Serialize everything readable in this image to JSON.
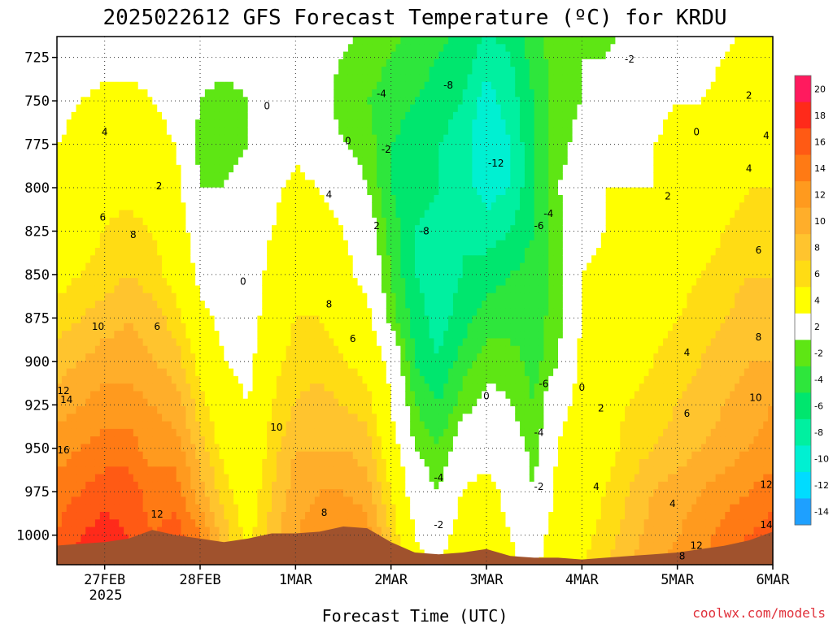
{
  "chart_data": {
    "type": "heatmap",
    "title": "2025022612 GFS Forecast Temperature (ºC) for KRDU",
    "xlabel": "Forecast Time (UTC)",
    "ylabel": "",
    "credit": "coolwx.com/models",
    "x_ticks": [
      "27FEB",
      "28FEB",
      "1MAR",
      "2MAR",
      "3MAR",
      "4MAR",
      "5MAR",
      "6MAR"
    ],
    "x_tick_year": "2025",
    "x_range_days": [
      -0.5,
      7.0
    ],
    "y_ticks": [
      "725",
      "750",
      "775",
      "800",
      "825",
      "850",
      "875",
      "900",
      "925",
      "950",
      "975",
      "1000"
    ],
    "y_range_hpa": [
      713,
      1017
    ],
    "colorbar": {
      "levels": [
        "20",
        "18",
        "16",
        "14",
        "12",
        "10",
        "8",
        "6",
        "4",
        "2",
        "-2",
        "-4",
        "-6",
        "-8",
        "-10",
        "-12",
        "-14"
      ],
      "colors": [
        "#ff1a5e",
        "#ff2a1a",
        "#ff5a14",
        "#ff7a14",
        "#ff9a1e",
        "#ffae2a",
        "#ffc42e",
        "#ffdc14",
        "#ffff00",
        "#ffffff",
        "#5ee614",
        "#2ee63c",
        "#00e66e",
        "#00f0a0",
        "#00f0d2",
        "#00dcff",
        "#1ea0ff"
      ]
    },
    "terrain_color": "#a0522d",
    "profiles": [
      {
        "t": -0.5,
        "v": [
          -1,
          1,
          2,
          3,
          4,
          5,
          7,
          9,
          11,
          13,
          15,
          16
        ]
      },
      {
        "t": -0.25,
        "v": [
          0,
          2,
          3,
          4,
          5,
          6,
          8,
          10,
          12,
          14,
          16,
          18
        ]
      },
      {
        "t": 0.0,
        "v": [
          1,
          3,
          4,
          5,
          6,
          7,
          9,
          11,
          13,
          15,
          17,
          19
        ]
      },
      {
        "t": 0.25,
        "v": [
          1,
          3,
          4,
          5,
          7,
          8,
          10,
          11,
          13,
          15,
          17,
          18
        ]
      },
      {
        "t": 0.5,
        "v": [
          1,
          2,
          3,
          4,
          6,
          7,
          9,
          10,
          12,
          13,
          15,
          16
        ]
      },
      {
        "t": 0.75,
        "v": [
          0,
          1,
          2,
          3,
          4,
          5,
          7,
          9,
          11,
          13,
          15,
          17
        ]
      },
      {
        "t": 1.0,
        "v": [
          -1,
          -2,
          -3,
          -2,
          0,
          1,
          3,
          5,
          7,
          9,
          11,
          14
        ]
      },
      {
        "t": 1.25,
        "v": [
          -1,
          -3,
          -3,
          -2,
          -1,
          0,
          1,
          2,
          4,
          5,
          7,
          9
        ]
      },
      {
        "t": 1.5,
        "v": [
          -1,
          -2,
          -2,
          -1,
          0,
          0,
          0,
          1,
          2,
          3,
          4,
          5
        ]
      },
      {
        "t": 1.75,
        "v": [
          -1,
          -1,
          0,
          1,
          2,
          3,
          4,
          5,
          6,
          7,
          8,
          9
        ]
      },
      {
        "t": 2.0,
        "v": [
          -1,
          0,
          1,
          3,
          4,
          5,
          6,
          7,
          8,
          10,
          11,
          12
        ]
      },
      {
        "t": 2.25,
        "v": [
          -1,
          -1,
          0,
          2,
          3,
          5,
          6,
          7,
          9,
          10,
          12,
          13
        ]
      },
      {
        "t": 2.5,
        "v": [
          -2,
          -3,
          -2,
          1,
          2,
          3,
          5,
          6,
          8,
          10,
          12,
          14
        ]
      },
      {
        "t": 2.75,
        "v": [
          -3,
          -4,
          -3,
          -2,
          0,
          1,
          3,
          5,
          7,
          9,
          11,
          13
        ]
      },
      {
        "t": 3.0,
        "v": [
          -4,
          -5,
          -6,
          -6,
          -5,
          -4,
          -3,
          1,
          2,
          4,
          6,
          8
        ]
      },
      {
        "t": 3.25,
        "v": [
          -5,
          -6,
          -7,
          -7,
          -8,
          -8,
          -7,
          -6,
          -4,
          -2,
          0,
          2
        ]
      },
      {
        "t": 3.5,
        "v": [
          -6,
          -7,
          -8,
          -8,
          -9,
          -9,
          -9,
          -8,
          -6,
          -4,
          -2,
          0
        ]
      },
      {
        "t": 3.75,
        "v": [
          -7,
          -8,
          -9,
          -9,
          -8,
          -8,
          -7,
          -5,
          -3,
          0,
          2,
          4
        ]
      },
      {
        "t": 4.0,
        "v": [
          -9,
          -11,
          -12,
          -11,
          -9,
          -7,
          -5,
          -3,
          -1,
          1,
          3,
          4
        ]
      },
      {
        "t": 4.25,
        "v": [
          -8,
          -9,
          -10,
          -10,
          -8,
          -6,
          -5,
          -3,
          -2,
          0,
          1,
          2
        ]
      },
      {
        "t": 4.5,
        "v": [
          -5,
          -6,
          -6,
          -6,
          -6,
          -5,
          -5,
          -5,
          -4,
          -3,
          -2,
          0
        ]
      },
      {
        "t": 4.75,
        "v": [
          -3,
          -3,
          -3,
          -2,
          -3,
          -3,
          -3,
          -2,
          1,
          2,
          3,
          4
        ]
      },
      {
        "t": 5.0,
        "v": [
          -2,
          -2,
          -1,
          0,
          1,
          2,
          2,
          3,
          3,
          4,
          4,
          5
        ]
      },
      {
        "t": 5.25,
        "v": [
          -2,
          -1,
          0,
          2,
          2,
          3,
          3,
          4,
          5,
          5,
          6,
          7
        ]
      },
      {
        "t": 5.5,
        "v": [
          -1,
          0,
          1,
          2,
          3,
          4,
          4,
          5,
          6,
          7,
          8,
          9
        ]
      },
      {
        "t": 5.75,
        "v": [
          0,
          1,
          2,
          2,
          3,
          4,
          5,
          6,
          7,
          8,
          10,
          11
        ]
      },
      {
        "t": 6.0,
        "v": [
          1,
          2,
          3,
          3,
          4,
          5,
          6,
          7,
          8,
          9,
          11,
          12
        ]
      },
      {
        "t": 6.25,
        "v": [
          1,
          2,
          3,
          4,
          5,
          6,
          7,
          8,
          9,
          10,
          12,
          13
        ]
      },
      {
        "t": 6.5,
        "v": [
          2,
          3,
          4,
          5,
          6,
          7,
          8,
          9,
          10,
          11,
          13,
          15
        ]
      },
      {
        "t": 6.75,
        "v": [
          3,
          4,
          5,
          6,
          7,
          8,
          9,
          10,
          11,
          12,
          14,
          16
        ]
      },
      {
        "t": 7.0,
        "v": [
          3,
          4,
          5,
          6,
          7,
          8,
          9,
          10,
          12,
          13,
          15,
          17
        ]
      }
    ],
    "contour_labels": [
      {
        "text": "0",
        "t": 1.7,
        "p": 753
      },
      {
        "text": "0",
        "t": 2.55,
        "p": 773
      },
      {
        "text": "-4",
        "t": 2.9,
        "p": 746
      },
      {
        "text": "-2",
        "t": 2.95,
        "p": 778
      },
      {
        "text": "-8",
        "t": 3.6,
        "p": 741
      },
      {
        "text": "-12",
        "t": 4.1,
        "p": 786
      },
      {
        "text": "-8",
        "t": 3.35,
        "p": 825
      },
      {
        "text": "-4",
        "t": 4.65,
        "p": 815
      },
      {
        "text": "-6",
        "t": 4.55,
        "p": 822
      },
      {
        "text": "-2",
        "t": 5.5,
        "p": 726
      },
      {
        "text": "0",
        "t": 6.2,
        "p": 768
      },
      {
        "text": "2",
        "t": 5.9,
        "p": 805
      },
      {
        "text": "2",
        "t": 6.75,
        "p": 747
      },
      {
        "text": "4",
        "t": 7.0,
        "p": 770
      },
      {
        "text": "4",
        "t": 6.75,
        "p": 789
      },
      {
        "text": "6",
        "t": 6.85,
        "p": 836
      },
      {
        "text": "8",
        "t": 6.85,
        "p": 886
      },
      {
        "text": "10",
        "t": 6.82,
        "p": 921
      },
      {
        "text": "12",
        "t": 7.0,
        "p": 971
      },
      {
        "text": "14",
        "t": 7.0,
        "p": 994
      },
      {
        "text": "4",
        "t": 0.0,
        "p": 768
      },
      {
        "text": "2",
        "t": 0.57,
        "p": 799
      },
      {
        "text": "6",
        "t": -0.02,
        "p": 817
      },
      {
        "text": "8",
        "t": 0.3,
        "p": 827
      },
      {
        "text": "10",
        "t": -0.07,
        "p": 880
      },
      {
        "text": "6",
        "t": 0.55,
        "p": 880
      },
      {
        "text": "12",
        "t": -0.6,
        "p": 917
      },
      {
        "text": "14",
        "t": -0.4,
        "p": 922
      },
      {
        "text": "16",
        "t": -0.5,
        "p": 951
      },
      {
        "text": "12",
        "t": 0.55,
        "p": 988
      },
      {
        "text": "0",
        "t": 1.45,
        "p": 854
      },
      {
        "text": "4",
        "t": 2.35,
        "p": 804
      },
      {
        "text": "2",
        "t": 2.85,
        "p": 822
      },
      {
        "text": "8",
        "t": 2.35,
        "p": 867
      },
      {
        "text": "6",
        "t": 2.6,
        "p": 887
      },
      {
        "text": "10",
        "t": 1.8,
        "p": 938
      },
      {
        "text": "8",
        "t": 2.3,
        "p": 987
      },
      {
        "text": "-6",
        "t": 4.6,
        "p": 913
      },
      {
        "text": "0",
        "t": 4.0,
        "p": 920
      },
      {
        "text": "0",
        "t": 5.0,
        "p": 915
      },
      {
        "text": "-4",
        "t": 4.55,
        "p": 941
      },
      {
        "text": "-4",
        "t": 3.5,
        "p": 967
      },
      {
        "text": "-2",
        "t": 3.5,
        "p": 994
      },
      {
        "text": "-2",
        "t": 4.55,
        "p": 972
      },
      {
        "text": "2",
        "t": 5.2,
        "p": 927
      },
      {
        "text": "4",
        "t": 5.15,
        "p": 972
      },
      {
        "text": "4",
        "t": 6.1,
        "p": 895
      },
      {
        "text": "6",
        "t": 6.1,
        "p": 930
      },
      {
        "text": "4",
        "t": 5.95,
        "p": 982
      },
      {
        "text": "8",
        "t": 6.05,
        "p": 1012
      },
      {
        "text": "12",
        "t": 6.2,
        "p": 1006
      }
    ],
    "terrain_profile_hpa": [
      {
        "t": -0.5,
        "p": 1006
      },
      {
        "t": -0.25,
        "p": 1005
      },
      {
        "t": 0.0,
        "p": 1004
      },
      {
        "t": 0.25,
        "p": 1002
      },
      {
        "t": 0.5,
        "p": 997
      },
      {
        "t": 0.75,
        "p": 1000
      },
      {
        "t": 1.0,
        "p": 1002
      },
      {
        "t": 1.25,
        "p": 1004
      },
      {
        "t": 1.5,
        "p": 1002
      },
      {
        "t": 1.75,
        "p": 999
      },
      {
        "t": 2.0,
        "p": 999
      },
      {
        "t": 2.25,
        "p": 998
      },
      {
        "t": 2.5,
        "p": 995
      },
      {
        "t": 2.75,
        "p": 996
      },
      {
        "t": 3.0,
        "p": 1004
      },
      {
        "t": 3.25,
        "p": 1010
      },
      {
        "t": 3.5,
        "p": 1011
      },
      {
        "t": 3.75,
        "p": 1010
      },
      {
        "t": 4.0,
        "p": 1008
      },
      {
        "t": 4.25,
        "p": 1012
      },
      {
        "t": 4.5,
        "p": 1013
      },
      {
        "t": 4.75,
        "p": 1013
      },
      {
        "t": 5.0,
        "p": 1014
      },
      {
        "t": 5.25,
        "p": 1013
      },
      {
        "t": 5.5,
        "p": 1012
      },
      {
        "t": 5.75,
        "p": 1011
      },
      {
        "t": 6.0,
        "p": 1010
      },
      {
        "t": 6.25,
        "p": 1008
      },
      {
        "t": 6.5,
        "p": 1006
      },
      {
        "t": 6.75,
        "p": 1003
      },
      {
        "t": 7.0,
        "p": 998
      }
    ]
  }
}
